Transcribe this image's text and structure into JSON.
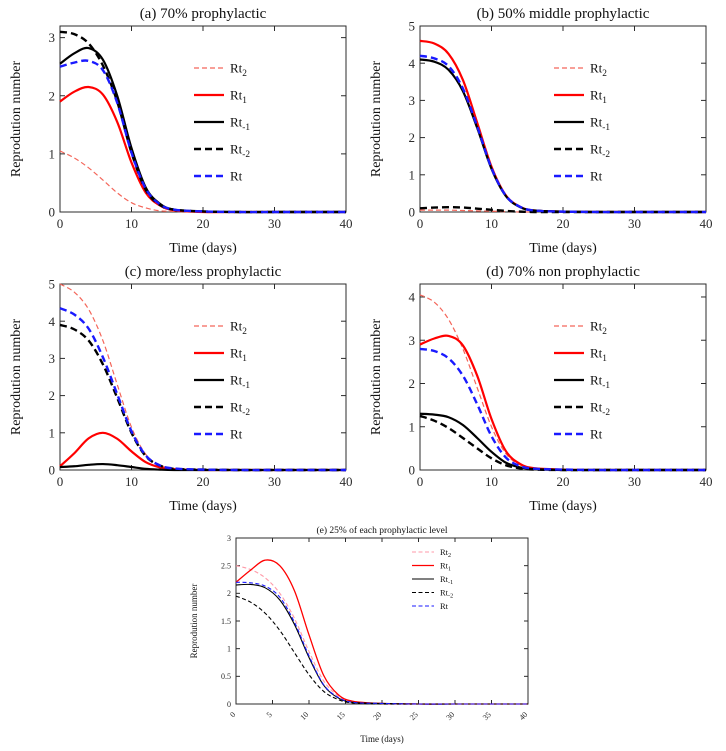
{
  "figure": {
    "background": "#ffffff",
    "axis_color": "#2b2b2b",
    "text_color": "#111111"
  },
  "chart_data": [
    {
      "id": "a",
      "type": "line",
      "title": "(a) 70% prophylactic",
      "xlabel": "Time (days)",
      "ylabel": "Reprodution number",
      "xlim": [
        0,
        40
      ],
      "ylim": [
        0,
        3.2
      ],
      "xticks": [
        0,
        10,
        20,
        30,
        40
      ],
      "yticks": [
        0,
        1,
        2,
        3
      ],
      "legend_position": "center-right",
      "grid": false,
      "x": [
        0,
        2,
        4,
        6,
        8,
        10,
        12,
        14,
        16,
        20,
        25,
        30,
        35,
        40
      ],
      "series": [
        {
          "name": "Rt2",
          "label": "Rt",
          "sub": "2",
          "color": "#f4665a",
          "linestyle": "dashed",
          "width": 1.2,
          "values": [
            1.05,
            0.93,
            0.76,
            0.55,
            0.33,
            0.16,
            0.07,
            0.02,
            0.01,
            0,
            0,
            0,
            0,
            0
          ]
        },
        {
          "name": "Rt1",
          "label": "Rt",
          "sub": "1",
          "color": "#ff0000",
          "linestyle": "solid",
          "width": 2.2,
          "values": [
            1.9,
            2.07,
            2.15,
            2.02,
            1.55,
            0.85,
            0.33,
            0.11,
            0.03,
            0,
            0,
            0,
            0,
            0
          ]
        },
        {
          "name": "Rt-1",
          "label": "Rt",
          "sub": "-1",
          "color": "#000000",
          "linestyle": "solid",
          "width": 2.2,
          "values": [
            2.55,
            2.73,
            2.82,
            2.62,
            2.0,
            1.1,
            0.42,
            0.14,
            0.04,
            0.01,
            0,
            0,
            0,
            0
          ]
        },
        {
          "name": "Rt-2",
          "label": "Rt",
          "sub": "-2",
          "color": "#000000",
          "linestyle": "dashed",
          "width": 2.4,
          "values": [
            3.1,
            3.06,
            2.9,
            2.52,
            1.9,
            1.02,
            0.38,
            0.12,
            0.04,
            0.01,
            0,
            0,
            0,
            0
          ]
        },
        {
          "name": "Rt",
          "label": "Rt",
          "sub": "",
          "color": "#1a1aff",
          "linestyle": "dashed",
          "width": 2.4,
          "values": [
            2.5,
            2.57,
            2.6,
            2.44,
            1.88,
            1.02,
            0.4,
            0.13,
            0.04,
            0.01,
            0,
            0,
            0,
            0
          ]
        }
      ]
    },
    {
      "id": "b",
      "type": "line",
      "title": "(b) 50% middle prophylactic",
      "xlabel": "Time (days)",
      "ylabel": "Reprodution number",
      "xlim": [
        0,
        40
      ],
      "ylim": [
        0,
        5
      ],
      "xticks": [
        0,
        10,
        20,
        30,
        40
      ],
      "yticks": [
        0,
        1,
        2,
        3,
        4,
        5
      ],
      "legend_position": "center-right",
      "grid": false,
      "x": [
        0,
        2,
        4,
        6,
        8,
        10,
        12,
        14,
        16,
        20,
        25,
        30,
        35,
        40
      ],
      "series": [
        {
          "name": "Rt2",
          "label": "Rt",
          "sub": "2",
          "color": "#f4665a",
          "linestyle": "dashed",
          "width": 1.2,
          "values": [
            0.05,
            0.05,
            0.05,
            0.04,
            0.03,
            0.02,
            0.01,
            0,
            0,
            0,
            0,
            0,
            0,
            0
          ]
        },
        {
          "name": "Rt1",
          "label": "Rt",
          "sub": "1",
          "color": "#ff0000",
          "linestyle": "solid",
          "width": 2.2,
          "values": [
            4.6,
            4.53,
            4.25,
            3.55,
            2.4,
            1.22,
            0.45,
            0.14,
            0.04,
            0.01,
            0,
            0,
            0,
            0
          ]
        },
        {
          "name": "Rt-1",
          "label": "Rt",
          "sub": "-1",
          "color": "#000000",
          "linestyle": "solid",
          "width": 2.2,
          "values": [
            4.1,
            4.04,
            3.82,
            3.25,
            2.26,
            1.16,
            0.43,
            0.13,
            0.04,
            0.01,
            0,
            0,
            0,
            0
          ]
        },
        {
          "name": "Rt-2",
          "label": "Rt",
          "sub": "-2",
          "color": "#000000",
          "linestyle": "dashed",
          "width": 2.4,
          "values": [
            0.1,
            0.12,
            0.13,
            0.12,
            0.09,
            0.06,
            0.03,
            0.01,
            0,
            0,
            0,
            0,
            0,
            0
          ]
        },
        {
          "name": "Rt",
          "label": "Rt",
          "sub": "",
          "color": "#1a1aff",
          "linestyle": "dashed",
          "width": 2.4,
          "values": [
            4.2,
            4.13,
            3.92,
            3.32,
            2.3,
            1.18,
            0.44,
            0.14,
            0.04,
            0.01,
            0,
            0,
            0,
            0
          ]
        }
      ]
    },
    {
      "id": "c",
      "type": "line",
      "title": "(c) more/less prophylactic",
      "xlabel": "Time (days)",
      "ylabel": "Reprodution number",
      "xlim": [
        0,
        40
      ],
      "ylim": [
        0,
        5
      ],
      "xticks": [
        0,
        10,
        20,
        30,
        40
      ],
      "yticks": [
        0,
        1,
        2,
        3,
        4,
        5
      ],
      "legend_position": "center-right",
      "grid": false,
      "x": [
        0,
        2,
        4,
        6,
        8,
        10,
        12,
        14,
        16,
        20,
        25,
        30,
        35,
        40
      ],
      "series": [
        {
          "name": "Rt2",
          "label": "Rt",
          "sub": "2",
          "color": "#f4665a",
          "linestyle": "dashed",
          "width": 1.2,
          "values": [
            5.0,
            4.78,
            4.32,
            3.48,
            2.3,
            1.15,
            0.42,
            0.13,
            0.04,
            0.01,
            0,
            0,
            0,
            0
          ]
        },
        {
          "name": "Rt1",
          "label": "Rt",
          "sub": "1",
          "color": "#ff0000",
          "linestyle": "solid",
          "width": 2.2,
          "values": [
            0.1,
            0.45,
            0.85,
            1.0,
            0.84,
            0.5,
            0.21,
            0.07,
            0.02,
            0,
            0,
            0,
            0,
            0
          ]
        },
        {
          "name": "Rt-1",
          "label": "Rt",
          "sub": "-1",
          "color": "#000000",
          "linestyle": "solid",
          "width": 2.2,
          "values": [
            0.08,
            0.1,
            0.14,
            0.16,
            0.13,
            0.08,
            0.03,
            0.01,
            0,
            0,
            0,
            0,
            0,
            0
          ]
        },
        {
          "name": "Rt-2",
          "label": "Rt",
          "sub": "-2",
          "color": "#000000",
          "linestyle": "dashed",
          "width": 2.4,
          "values": [
            3.9,
            3.78,
            3.48,
            2.84,
            1.94,
            1.0,
            0.37,
            0.12,
            0.03,
            0.01,
            0,
            0,
            0,
            0
          ]
        },
        {
          "name": "Rt",
          "label": "Rt",
          "sub": "",
          "color": "#1a1aff",
          "linestyle": "dashed",
          "width": 2.4,
          "values": [
            4.35,
            4.18,
            3.8,
            3.03,
            2.04,
            1.04,
            0.39,
            0.12,
            0.04,
            0.01,
            0,
            0,
            0,
            0
          ]
        }
      ]
    },
    {
      "id": "d",
      "type": "line",
      "title": "(d) 70% non prophylactic",
      "xlabel": "Time (days)",
      "ylabel": "Reprodution number",
      "xlim": [
        0,
        40
      ],
      "ylim": [
        0,
        4.3
      ],
      "xticks": [
        0,
        10,
        20,
        30,
        40
      ],
      "yticks": [
        0,
        1,
        2,
        3,
        4
      ],
      "legend_position": "center-right",
      "grid": false,
      "x": [
        0,
        2,
        4,
        6,
        8,
        10,
        12,
        14,
        16,
        20,
        25,
        30,
        35,
        40
      ],
      "series": [
        {
          "name": "Rt2",
          "label": "Rt",
          "sub": "2",
          "color": "#f4665a",
          "linestyle": "dashed",
          "width": 1.2,
          "values": [
            4.05,
            3.88,
            3.48,
            2.8,
            1.9,
            1.0,
            0.38,
            0.12,
            0.03,
            0.01,
            0,
            0,
            0,
            0
          ]
        },
        {
          "name": "Rt1",
          "label": "Rt",
          "sub": "1",
          "color": "#ff0000",
          "linestyle": "solid",
          "width": 2.2,
          "values": [
            2.9,
            3.04,
            3.1,
            2.88,
            2.18,
            1.18,
            0.44,
            0.14,
            0.04,
            0.01,
            0,
            0,
            0,
            0
          ]
        },
        {
          "name": "Rt-1",
          "label": "Rt",
          "sub": "-1",
          "color": "#000000",
          "linestyle": "solid",
          "width": 2.2,
          "values": [
            1.3,
            1.28,
            1.22,
            1.04,
            0.74,
            0.42,
            0.17,
            0.06,
            0.02,
            0,
            0,
            0,
            0,
            0
          ]
        },
        {
          "name": "Rt-2",
          "label": "Rt",
          "sub": "-2",
          "color": "#000000",
          "linestyle": "dashed",
          "width": 2.4,
          "values": [
            1.25,
            1.14,
            0.97,
            0.74,
            0.5,
            0.27,
            0.11,
            0.04,
            0.01,
            0,
            0,
            0,
            0,
            0
          ]
        },
        {
          "name": "Rt",
          "label": "Rt",
          "sub": "",
          "color": "#1a1aff",
          "linestyle": "dashed",
          "width": 2.4,
          "values": [
            2.8,
            2.75,
            2.58,
            2.18,
            1.52,
            0.78,
            0.29,
            0.09,
            0.03,
            0.01,
            0,
            0,
            0,
            0
          ]
        }
      ]
    },
    {
      "id": "e",
      "type": "line",
      "title": "(e) 25% of each prophylactic level",
      "xlabel": "Time (days)",
      "ylabel": "Reprodution number",
      "xlim": [
        0,
        40
      ],
      "ylim": [
        0,
        3
      ],
      "xticks": [
        0,
        5,
        10,
        15,
        20,
        25,
        30,
        35,
        40
      ],
      "yticks": [
        0,
        0.5,
        1,
        1.5,
        2,
        2.5,
        3
      ],
      "legend_position": "upper-right",
      "grid": false,
      "x": [
        0,
        2,
        4,
        6,
        8,
        10,
        12,
        14,
        16,
        20,
        25,
        30,
        35,
        40
      ],
      "series": [
        {
          "name": "Rt2",
          "label": "Rt",
          "sub": "2",
          "color": "#ff9aa8",
          "linestyle": "dashed",
          "width": 1.1,
          "values": [
            2.5,
            2.43,
            2.28,
            2.0,
            1.55,
            0.95,
            0.42,
            0.15,
            0.05,
            0.01,
            0,
            0,
            0,
            0
          ]
        },
        {
          "name": "Rt1",
          "label": "Rt",
          "sub": "1",
          "color": "#ff0000",
          "linestyle": "solid",
          "width": 1.3,
          "values": [
            2.2,
            2.42,
            2.6,
            2.5,
            2.05,
            1.25,
            0.52,
            0.17,
            0.05,
            0.01,
            0,
            0,
            0,
            0
          ]
        },
        {
          "name": "Rt-1",
          "label": "Rt",
          "sub": "-1",
          "color": "#000000",
          "linestyle": "solid",
          "width": 1.1,
          "values": [
            2.15,
            2.16,
            2.1,
            1.88,
            1.44,
            0.84,
            0.34,
            0.11,
            0.03,
            0.01,
            0,
            0,
            0,
            0
          ]
        },
        {
          "name": "Rt-2",
          "label": "Rt",
          "sub": "-2",
          "color": "#000000",
          "linestyle": "dashed",
          "width": 1.1,
          "values": [
            1.95,
            1.84,
            1.64,
            1.33,
            0.93,
            0.53,
            0.23,
            0.08,
            0.02,
            0,
            0,
            0,
            0,
            0
          ]
        },
        {
          "name": "Rt",
          "label": "Rt",
          "sub": "",
          "color": "#1a1aff",
          "linestyle": "dashed",
          "width": 1.1,
          "values": [
            2.2,
            2.19,
            2.13,
            1.93,
            1.48,
            0.87,
            0.35,
            0.12,
            0.03,
            0.01,
            0,
            0,
            0,
            0
          ]
        }
      ]
    }
  ]
}
